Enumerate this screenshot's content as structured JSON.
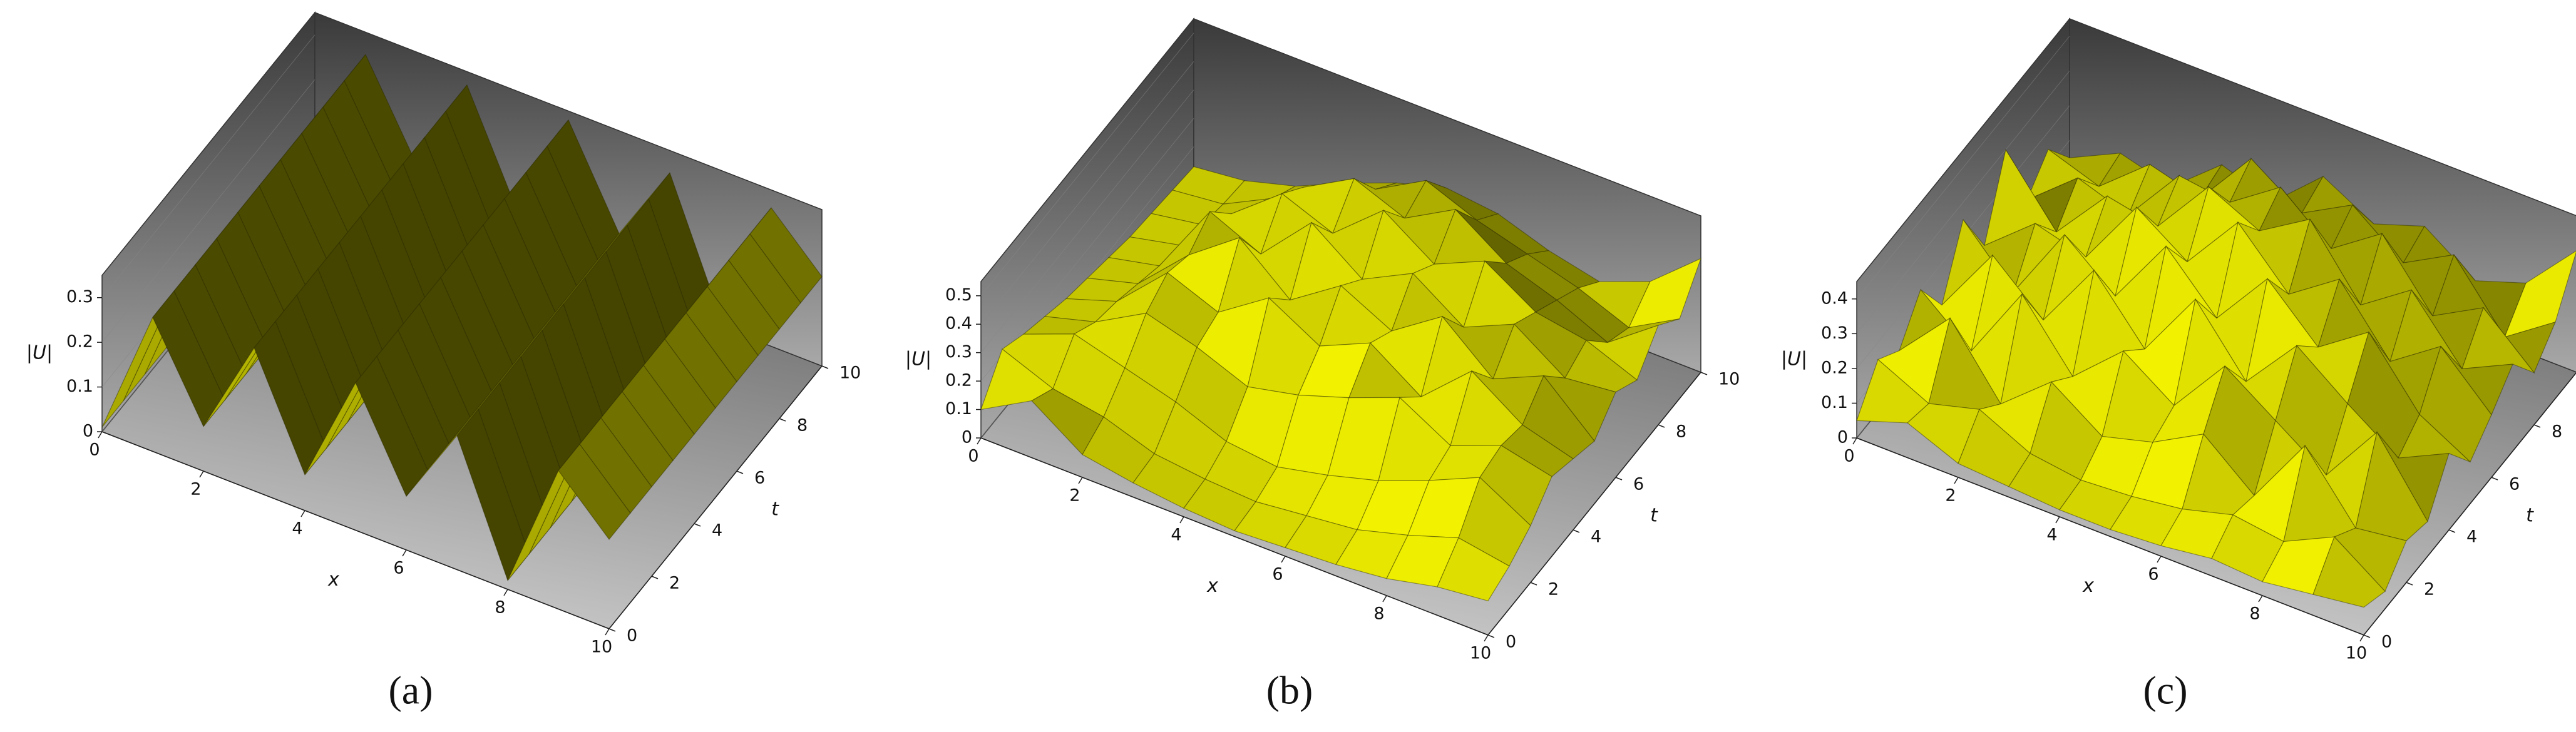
{
  "chart_data": [
    {
      "type": "surface",
      "label": "(a)",
      "xlabel": "x",
      "ylabel": "t",
      "zlabel": "|U|",
      "color": "#e6e600",
      "x": [
        0,
        1,
        2,
        3,
        4,
        5,
        6,
        7,
        8,
        9,
        10
      ],
      "y": [
        0,
        1,
        2,
        3,
        4,
        5,
        6,
        7,
        8,
        9,
        10
      ],
      "xlim": [
        0,
        10
      ],
      "ylim": [
        0,
        10
      ],
      "zlim": [
        0,
        0.35
      ],
      "xticks": [
        0,
        2,
        4,
        6,
        8,
        10
      ],
      "yticks": [
        0,
        2,
        4,
        6,
        8,
        10
      ],
      "zticks": [
        0,
        0.1,
        0.2,
        0.3
      ],
      "z": [
        [
          0.01,
          0.3,
          0.1,
          0.32,
          0.08,
          0.33,
          0.12,
          0.3,
          0.02,
          0.31,
          0.2
        ],
        [
          0.01,
          0.3,
          0.1,
          0.32,
          0.08,
          0.33,
          0.12,
          0.3,
          0.02,
          0.31,
          0.2
        ],
        [
          0.01,
          0.3,
          0.1,
          0.32,
          0.08,
          0.33,
          0.12,
          0.3,
          0.02,
          0.31,
          0.2
        ],
        [
          0.01,
          0.3,
          0.1,
          0.32,
          0.08,
          0.33,
          0.12,
          0.3,
          0.02,
          0.31,
          0.2
        ],
        [
          0.01,
          0.3,
          0.1,
          0.32,
          0.08,
          0.33,
          0.12,
          0.3,
          0.02,
          0.31,
          0.2
        ],
        [
          0.01,
          0.3,
          0.1,
          0.32,
          0.08,
          0.33,
          0.12,
          0.3,
          0.02,
          0.31,
          0.2
        ],
        [
          0.01,
          0.3,
          0.1,
          0.32,
          0.08,
          0.33,
          0.12,
          0.3,
          0.02,
          0.31,
          0.2
        ],
        [
          0.01,
          0.3,
          0.1,
          0.32,
          0.08,
          0.33,
          0.12,
          0.3,
          0.02,
          0.31,
          0.2
        ],
        [
          0.01,
          0.3,
          0.1,
          0.32,
          0.08,
          0.33,
          0.12,
          0.3,
          0.02,
          0.31,
          0.2
        ],
        [
          0.01,
          0.3,
          0.1,
          0.32,
          0.08,
          0.33,
          0.12,
          0.3,
          0.02,
          0.31,
          0.2
        ],
        [
          0.01,
          0.3,
          0.1,
          0.32,
          0.08,
          0.33,
          0.12,
          0.3,
          0.02,
          0.31,
          0.2
        ]
      ]
    },
    {
      "type": "surface",
      "label": "(b)",
      "xlabel": "x",
      "ylabel": "t",
      "zlabel": "|U|",
      "color": "#e6e600",
      "x": [
        0,
        1,
        2,
        3,
        4,
        5,
        6,
        7,
        8,
        9,
        10
      ],
      "y": [
        0,
        1,
        2,
        3,
        4,
        5,
        6,
        7,
        8,
        9,
        10
      ],
      "xlim": [
        0,
        10
      ],
      "ylim": [
        0,
        10
      ],
      "zlim": [
        0,
        0.55
      ],
      "xticks": [
        0,
        2,
        4,
        6,
        8,
        10
      ],
      "yticks": [
        0,
        2,
        4,
        6,
        8,
        10
      ],
      "zticks": [
        0,
        0.1,
        0.2,
        0.3,
        0.4,
        0.5
      ],
      "z": [
        [
          0.1,
          0.2,
          0.08,
          0.05,
          0.03,
          0.02,
          0.03,
          0.04,
          0.06,
          0.1,
          0.12
        ],
        [
          0.22,
          0.15,
          0.12,
          0.06,
          0.04,
          0.03,
          0.05,
          0.07,
          0.12,
          0.18,
          0.15
        ],
        [
          0.18,
          0.25,
          0.2,
          0.15,
          0.08,
          0.06,
          0.1,
          0.15,
          0.22,
          0.3,
          0.2
        ],
        [
          0.15,
          0.2,
          0.3,
          0.25,
          0.18,
          0.22,
          0.28,
          0.35,
          0.25,
          0.32,
          0.28
        ],
        [
          0.12,
          0.18,
          0.35,
          0.28,
          0.4,
          0.3,
          0.38,
          0.26,
          0.42,
          0.3,
          0.25
        ],
        [
          0.1,
          0.15,
          0.32,
          0.45,
          0.3,
          0.42,
          0.33,
          0.45,
          0.3,
          0.38,
          0.22
        ],
        [
          0.08,
          0.12,
          0.38,
          0.3,
          0.48,
          0.35,
          0.44,
          0.32,
          0.4,
          0.28,
          0.3
        ],
        [
          0.06,
          0.1,
          0.28,
          0.42,
          0.35,
          0.5,
          0.38,
          0.46,
          0.35,
          0.32,
          0.25
        ],
        [
          0.05,
          0.08,
          0.2,
          0.35,
          0.45,
          0.38,
          0.48,
          0.36,
          0.3,
          0.22,
          0.35
        ],
        [
          0.04,
          0.06,
          0.15,
          0.25,
          0.32,
          0.42,
          0.35,
          0.3,
          0.25,
          0.18,
          0.28
        ],
        [
          0.03,
          0.05,
          0.1,
          0.18,
          0.25,
          0.3,
          0.28,
          0.22,
          0.18,
          0.25,
          0.4
        ]
      ]
    },
    {
      "type": "surface",
      "label": "(c)",
      "xlabel": "x",
      "ylabel": "t",
      "zlabel": "|U|",
      "color": "#e6e600",
      "x": [
        0,
        1,
        2,
        3,
        4,
        5,
        6,
        7,
        8,
        9,
        10
      ],
      "y": [
        0,
        1,
        2,
        3,
        4,
        5,
        6,
        7,
        8,
        9,
        10
      ],
      "xlim": [
        0,
        10
      ],
      "ylim": [
        0,
        10
      ],
      "zlim": [
        0,
        0.45
      ],
      "xticks": [
        0,
        2,
        4,
        6,
        8,
        10
      ],
      "yticks": [
        0,
        2,
        4,
        6,
        8,
        10
      ],
      "zticks": [
        0,
        0.1,
        0.2,
        0.3,
        0.4
      ],
      "z": [
        [
          0.05,
          0.1,
          0.04,
          0.03,
          0.02,
          0.02,
          0.03,
          0.05,
          0.04,
          0.06,
          0.08
        ],
        [
          0.15,
          0.08,
          0.12,
          0.05,
          0.03,
          0.04,
          0.06,
          0.1,
          0.08,
          0.15,
          0.05
        ],
        [
          0.1,
          0.25,
          0.06,
          0.18,
          0.08,
          0.12,
          0.2,
          0.08,
          0.28,
          0.1,
          0.12
        ],
        [
          0.2,
          0.08,
          0.3,
          0.12,
          0.25,
          0.15,
          0.32,
          0.22,
          0.12,
          0.3,
          0.1
        ],
        [
          0.08,
          0.28,
          0.15,
          0.35,
          0.18,
          0.38,
          0.2,
          0.36,
          0.25,
          0.15,
          0.22
        ],
        [
          0.25,
          0.1,
          0.32,
          0.2,
          0.4,
          0.25,
          0.42,
          0.28,
          0.38,
          0.2,
          0.12
        ],
        [
          0.1,
          0.22,
          0.18,
          0.38,
          0.28,
          0.45,
          0.3,
          0.4,
          0.22,
          0.32,
          0.18
        ],
        [
          0.3,
          0.12,
          0.28,
          0.25,
          0.42,
          0.35,
          0.44,
          0.25,
          0.35,
          0.18,
          0.25
        ],
        [
          0.08,
          0.2,
          0.15,
          0.32,
          0.3,
          0.4,
          0.28,
          0.38,
          0.2,
          0.28,
          0.15
        ],
        [
          0.15,
          0.1,
          0.22,
          0.18,
          0.35,
          0.25,
          0.33,
          0.22,
          0.3,
          0.12,
          0.22
        ],
        [
          0.05,
          0.12,
          0.08,
          0.2,
          0.15,
          0.28,
          0.2,
          0.25,
          0.15,
          0.2,
          0.35
        ]
      ]
    }
  ]
}
